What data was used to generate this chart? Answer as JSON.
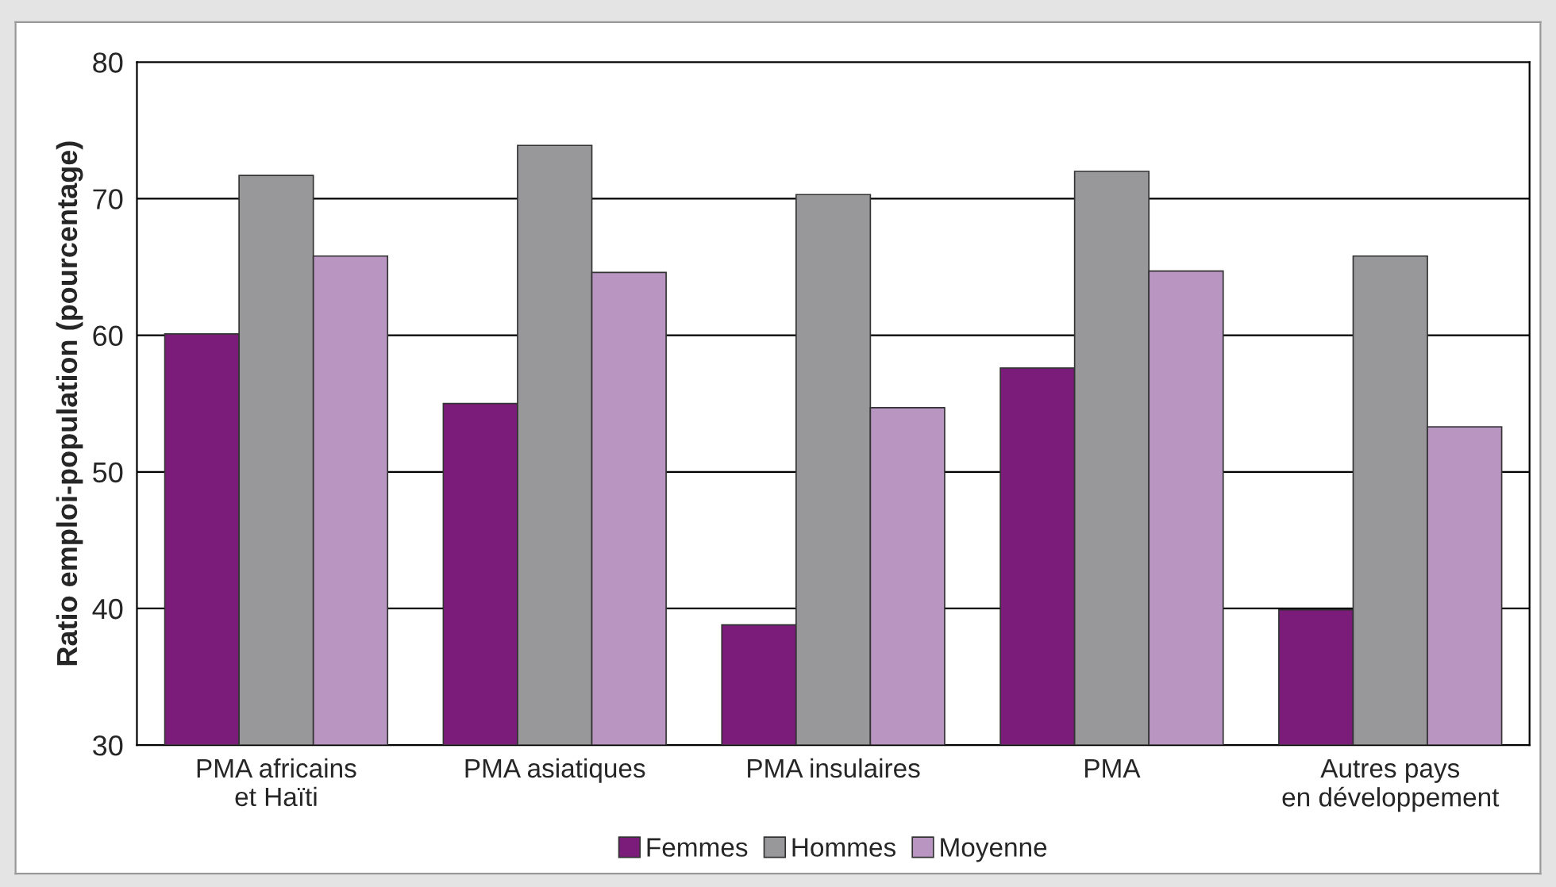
{
  "chart_data": {
    "type": "bar",
    "ylabel": "Ratio emploi-population (pourcentage)",
    "categories": [
      "PMA africains\net Haïti",
      "PMA asiatiques",
      "PMA insulaires",
      "PMA",
      "Autres pays\nen développement"
    ],
    "series": [
      {
        "name": "Femmes",
        "color": "#7b1c7b",
        "values": [
          60.1,
          55.0,
          38.8,
          57.6,
          39.9
        ]
      },
      {
        "name": "Hommes",
        "color": "#98989b",
        "values": [
          71.7,
          73.9,
          70.3,
          72.0,
          65.8
        ]
      },
      {
        "name": "Moyenne",
        "color": "#b996c2",
        "values": [
          65.8,
          64.6,
          54.7,
          64.7,
          53.3
        ]
      }
    ],
    "ylim": [
      30,
      80
    ],
    "yticks": [
      30,
      40,
      50,
      60,
      70,
      80
    ],
    "grid": "y",
    "legend": "bottom"
  }
}
